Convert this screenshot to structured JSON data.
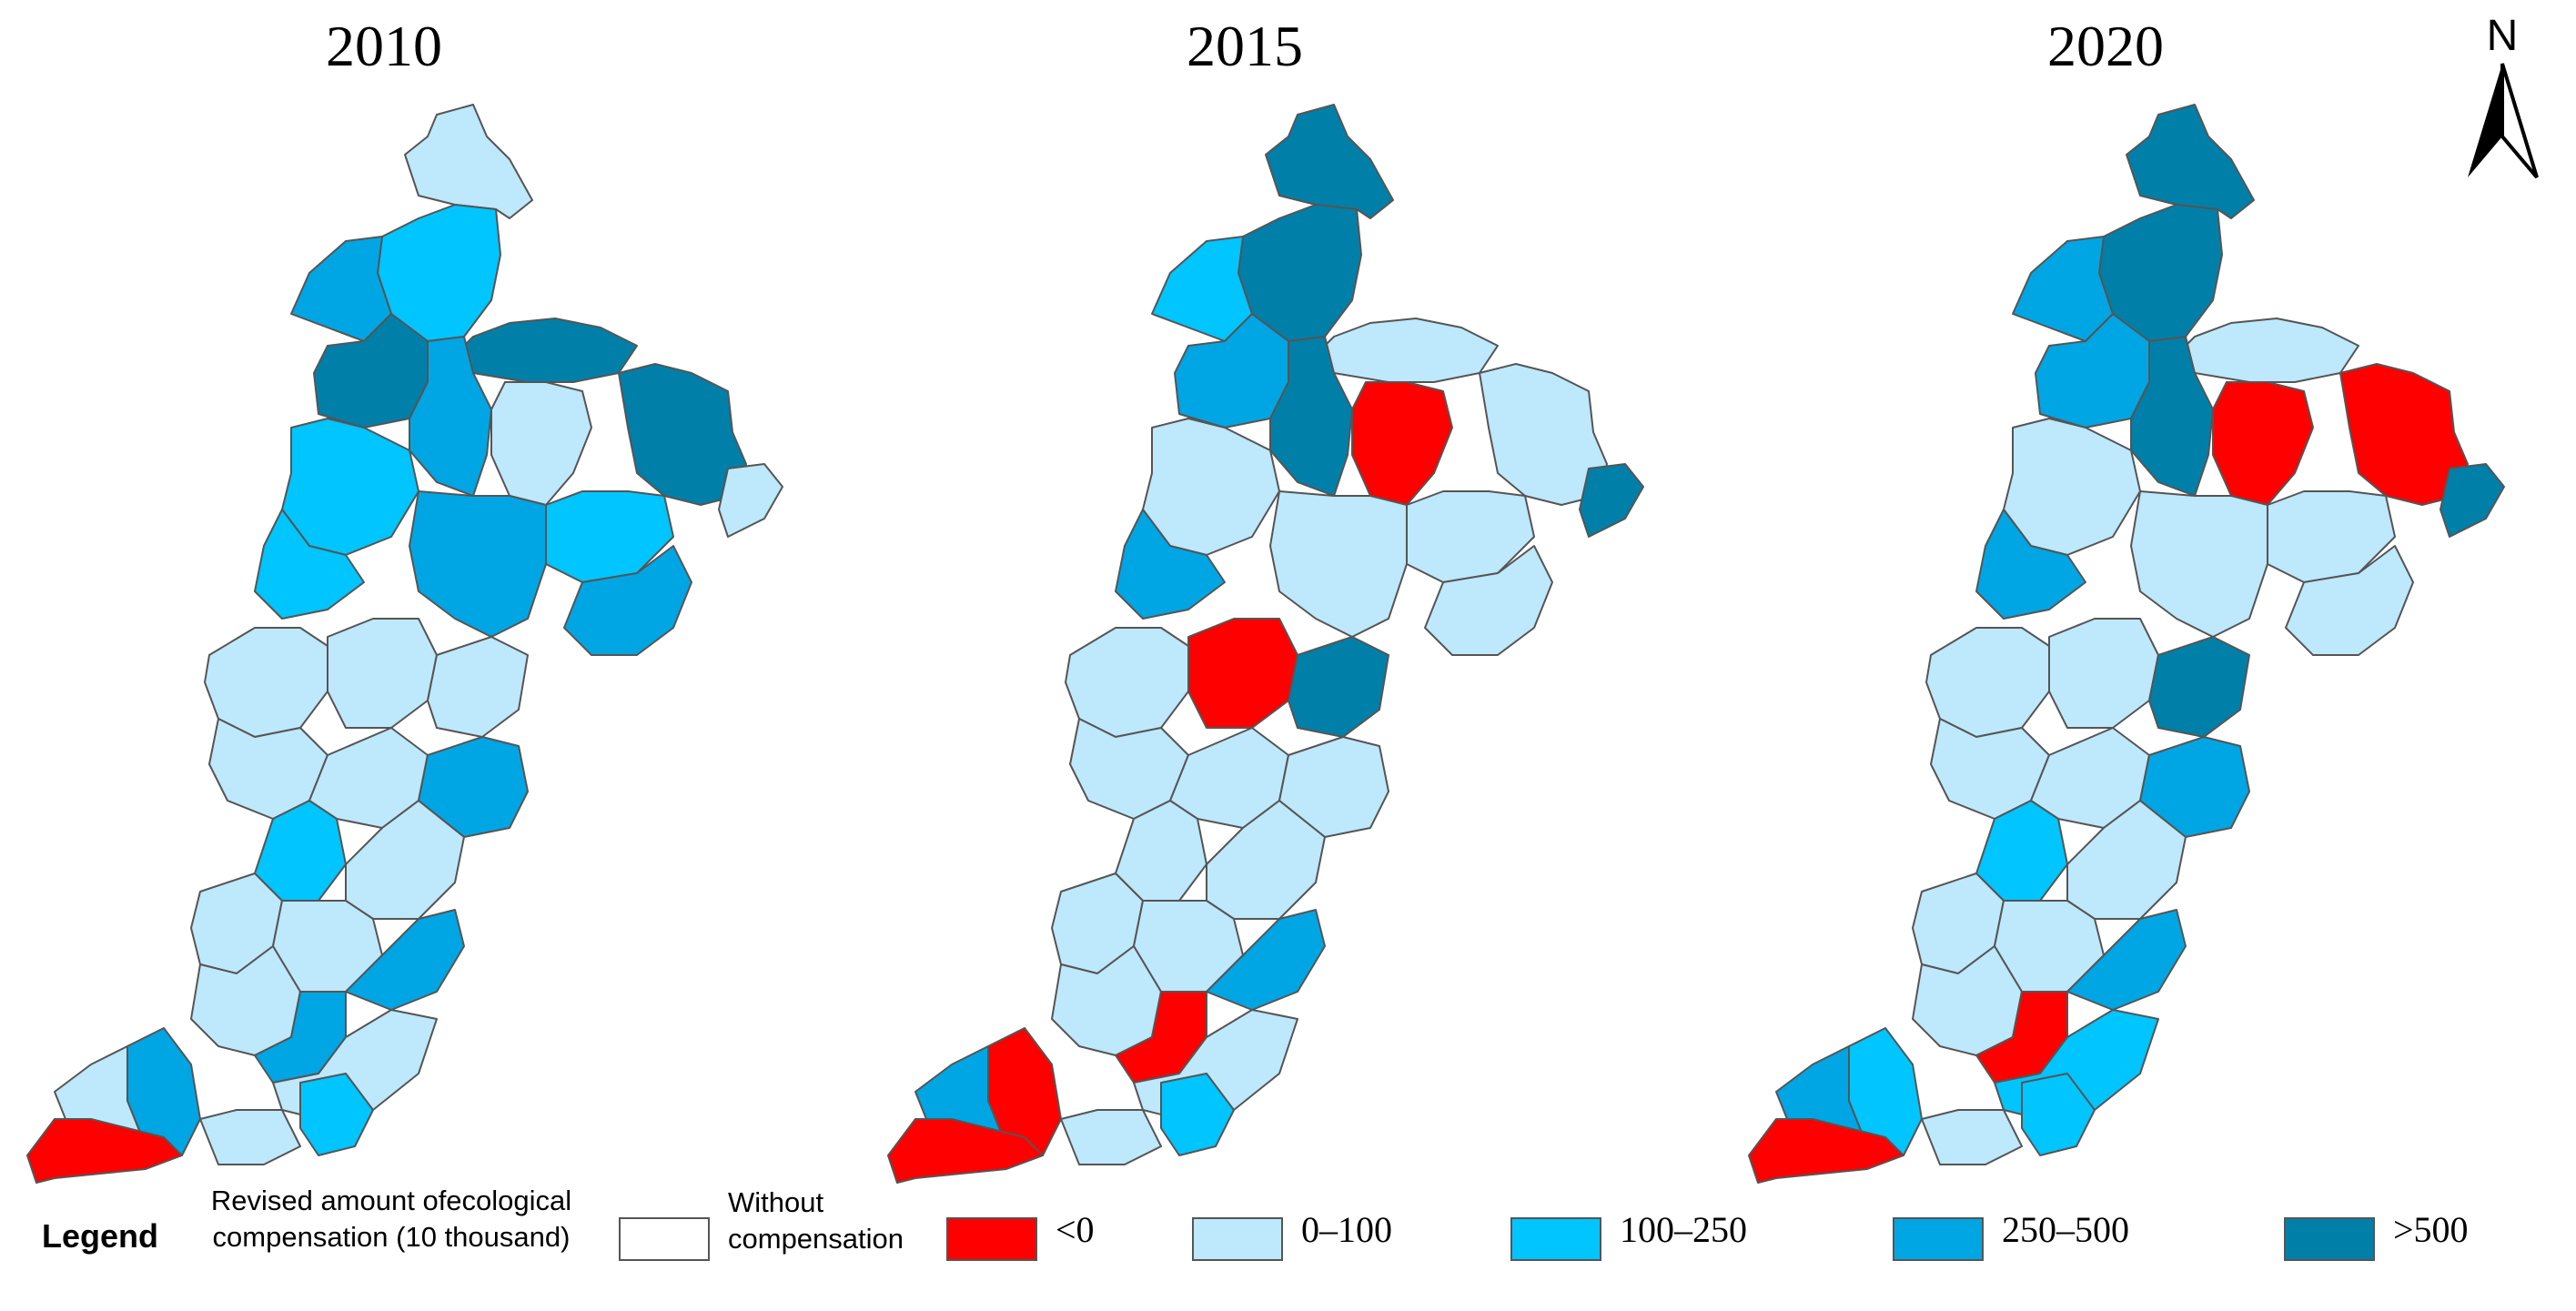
{
  "panels": [
    {
      "year": "2010"
    },
    {
      "year": "2015"
    },
    {
      "year": "2020"
    }
  ],
  "north_label": "N",
  "legend": {
    "title": "Legend",
    "description": "Revised amount ofecological compensation (10 thousand)",
    "items": [
      {
        "label": "Without compensation",
        "color": "#ffffff"
      },
      {
        "label": "<0",
        "color": "#ff0000"
      },
      {
        "label": "0–100",
        "color": "#bee8fb"
      },
      {
        "label": "100–250",
        "color": "#00c5ff"
      },
      {
        "label": "250–500",
        "color": "#00a6e3"
      },
      {
        "label": ">500",
        "color": "#0080a8"
      }
    ]
  }
}
